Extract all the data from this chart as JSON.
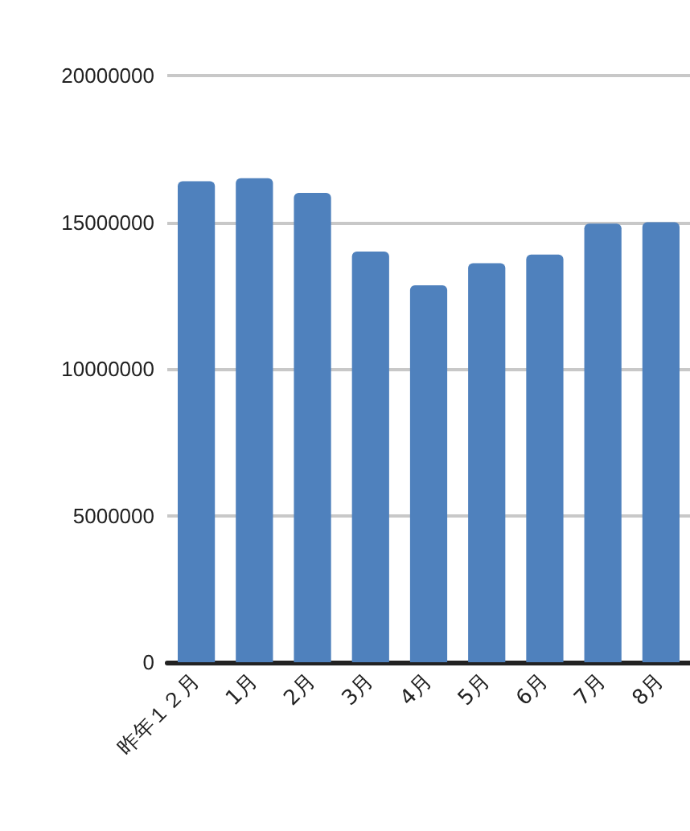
{
  "chart_data": {
    "type": "bar",
    "categories": [
      "昨年１２月",
      "1月",
      "2月",
      "3月",
      "4月",
      "5月",
      "6月",
      "7月",
      "8月"
    ],
    "values": [
      16400000,
      16500000,
      16000000,
      14000000,
      12850000,
      13600000,
      13900000,
      14950000,
      15000000
    ],
    "color": "#4f81bd",
    "ylim": [
      0,
      20000000
    ],
    "yticks": [
      0,
      5000000,
      10000000,
      15000000,
      20000000
    ],
    "grid": "y"
  }
}
